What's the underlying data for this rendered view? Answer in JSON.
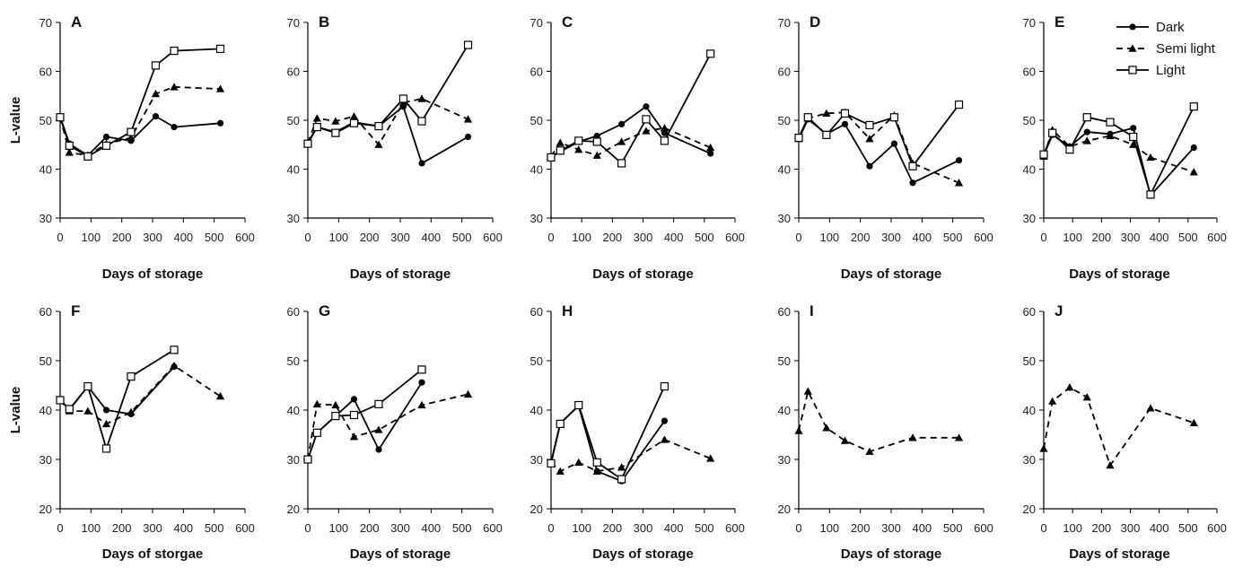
{
  "chart_data": [
    {
      "type": "line",
      "panel_label": "A",
      "ylabel": "L-value",
      "xlabel": "Days of storage",
      "xlim": [
        0,
        600
      ],
      "xticks": [
        0,
        100,
        200,
        300,
        400,
        500,
        600
      ],
      "ylim": [
        30,
        70
      ],
      "yticks": [
        30,
        40,
        50,
        60,
        70
      ],
      "series": [
        {
          "name": "Dark",
          "x": [
            0,
            30,
            90,
            150,
            230,
            310,
            370,
            520
          ],
          "y": [
            50.8,
            45.2,
            42.8,
            46.6,
            45.8,
            50.8,
            48.6,
            49.4
          ]
        },
        {
          "name": "Semi light",
          "x": [
            0,
            30,
            90,
            150,
            230,
            310,
            370,
            520
          ],
          "y": [
            50.6,
            43.4,
            42.8,
            45.2,
            46.4,
            55.4,
            56.8,
            56.4
          ]
        },
        {
          "name": "Light",
          "x": [
            0,
            30,
            90,
            150,
            230,
            310,
            370,
            520
          ],
          "y": [
            50.6,
            44.8,
            42.6,
            44.8,
            47.6,
            61.2,
            64.2,
            64.6
          ]
        }
      ]
    },
    {
      "type": "line",
      "panel_label": "B",
      "ylabel": "",
      "xlabel": "Days of storage",
      "xlim": [
        0,
        600
      ],
      "xticks": [
        0,
        100,
        200,
        300,
        400,
        500,
        600
      ],
      "ylim": [
        30,
        70
      ],
      "yticks": [
        30,
        40,
        50,
        60,
        70
      ],
      "series": [
        {
          "name": "Dark",
          "x": [
            0,
            30,
            90,
            150,
            230,
            310,
            370,
            520
          ],
          "y": [
            45.4,
            48.6,
            47.6,
            49.6,
            48.8,
            52.8,
            41.2,
            46.6
          ]
        },
        {
          "name": "Semi light",
          "x": [
            0,
            30,
            90,
            150,
            230,
            310,
            370,
            520
          ],
          "y": [
            45.4,
            50.4,
            49.8,
            50.8,
            45.0,
            53.6,
            54.4,
            50.2
          ]
        },
        {
          "name": "Light",
          "x": [
            0,
            30,
            90,
            150,
            230,
            310,
            370,
            520
          ],
          "y": [
            45.2,
            48.6,
            47.4,
            49.4,
            48.8,
            54.4,
            49.8,
            65.4
          ]
        }
      ]
    },
    {
      "type": "line",
      "panel_label": "C",
      "ylabel": "",
      "xlabel": "Days of storage",
      "xlim": [
        0,
        600
      ],
      "xticks": [
        0,
        100,
        200,
        300,
        400,
        500,
        600
      ],
      "ylim": [
        30,
        70
      ],
      "yticks": [
        30,
        40,
        50,
        60,
        70
      ],
      "series": [
        {
          "name": "Dark",
          "x": [
            0,
            30,
            90,
            150,
            230,
            310,
            370,
            520
          ],
          "y": [
            42.4,
            43.6,
            45.6,
            46.8,
            49.2,
            52.8,
            47.4,
            43.2
          ]
        },
        {
          "name": "Semi light",
          "x": [
            0,
            30,
            90,
            150,
            230,
            310,
            370,
            520
          ],
          "y": [
            42.6,
            45.4,
            44.0,
            42.8,
            45.6,
            47.8,
            48.4,
            44.4
          ]
        },
        {
          "name": "Light",
          "x": [
            0,
            30,
            90,
            150,
            230,
            310,
            370,
            520
          ],
          "y": [
            42.4,
            43.8,
            45.8,
            45.6,
            41.2,
            50.2,
            45.8,
            63.6
          ]
        }
      ]
    },
    {
      "type": "line",
      "panel_label": "D",
      "ylabel": "",
      "xlabel": "Days of storage",
      "xlim": [
        0,
        600
      ],
      "xticks": [
        0,
        100,
        200,
        300,
        400,
        500,
        600
      ],
      "ylim": [
        30,
        70
      ],
      "yticks": [
        30,
        40,
        50,
        60,
        70
      ],
      "series": [
        {
          "name": "Dark",
          "x": [
            0,
            30,
            90,
            150,
            230,
            310,
            370,
            520
          ],
          "y": [
            46.2,
            50.2,
            47.2,
            49.2,
            40.6,
            45.2,
            37.2,
            41.8
          ]
        },
        {
          "name": "Semi light",
          "x": [
            0,
            30,
            90,
            150,
            230,
            310,
            370,
            520
          ],
          "y": [
            46.2,
            50.4,
            51.4,
            51.6,
            46.2,
            51.0,
            41.2,
            37.2
          ]
        },
        {
          "name": "Light",
          "x": [
            0,
            30,
            90,
            150,
            230,
            310,
            370,
            520
          ],
          "y": [
            46.4,
            50.6,
            47.0,
            51.4,
            49.0,
            50.6,
            40.6,
            53.2
          ]
        }
      ]
    },
    {
      "type": "line",
      "panel_label": "E",
      "ylabel": "",
      "xlabel": "Days of storage",
      "xlim": [
        0,
        600
      ],
      "xticks": [
        0,
        100,
        200,
        300,
        400,
        500,
        600
      ],
      "ylim": [
        30,
        70
      ],
      "yticks": [
        30,
        40,
        50,
        60,
        70
      ],
      "legend": {
        "placement": "top-right",
        "entries": [
          "Dark",
          "Semi light",
          "Light"
        ]
      },
      "series": [
        {
          "name": "Dark",
          "x": [
            0,
            30,
            90,
            150,
            230,
            310,
            370,
            520
          ],
          "y": [
            42.8,
            47.0,
            44.6,
            47.6,
            47.2,
            48.4,
            34.6,
            44.4
          ]
        },
        {
          "name": "Semi light",
          "x": [
            0,
            30,
            90,
            150,
            230,
            310,
            370,
            520
          ],
          "y": [
            42.6,
            48.0,
            44.6,
            45.8,
            46.8,
            45.0,
            42.4,
            39.4
          ]
        },
        {
          "name": "Light",
          "x": [
            0,
            30,
            90,
            150,
            230,
            310,
            370,
            520
          ],
          "y": [
            43.0,
            47.4,
            44.0,
            50.6,
            49.6,
            46.6,
            34.8,
            52.8
          ]
        }
      ]
    },
    {
      "type": "line",
      "panel_label": "F",
      "ylabel": "L-value",
      "xlabel": "Days of storgae",
      "xlim": [
        0,
        600
      ],
      "xticks": [
        0,
        100,
        200,
        300,
        400,
        500,
        600
      ],
      "ylim": [
        20,
        60
      ],
      "yticks": [
        20,
        30,
        40,
        50,
        60
      ],
      "series": [
        {
          "name": "Dark",
          "x": [
            0,
            30,
            90,
            150,
            230,
            370
          ],
          "y": [
            42.2,
            40.0,
            44.8,
            40.0,
            39.2,
            48.8
          ]
        },
        {
          "name": "Semi light",
          "x": [
            0,
            30,
            90,
            150,
            230,
            370,
            520
          ],
          "y": [
            42.0,
            39.8,
            39.8,
            37.2,
            39.6,
            49.0,
            42.8
          ]
        },
        {
          "name": "Light",
          "x": [
            0,
            30,
            90,
            150,
            230,
            370
          ],
          "y": [
            42.0,
            40.2,
            44.8,
            32.2,
            46.8,
            52.2
          ]
        }
      ]
    },
    {
      "type": "line",
      "panel_label": "G",
      "ylabel": "",
      "xlabel": "Days of storage",
      "xlim": [
        0,
        600
      ],
      "xticks": [
        0,
        100,
        200,
        300,
        400,
        500,
        600
      ],
      "ylim": [
        20,
        60
      ],
      "yticks": [
        20,
        30,
        40,
        50,
        60
      ],
      "series": [
        {
          "name": "Dark",
          "x": [
            0,
            30,
            90,
            150,
            230,
            370
          ],
          "y": [
            30.0,
            35.4,
            38.8,
            42.2,
            32.0,
            45.6
          ]
        },
        {
          "name": "Semi light",
          "x": [
            0,
            30,
            90,
            150,
            230,
            370,
            520
          ],
          "y": [
            30.0,
            41.2,
            41.0,
            34.6,
            36.0,
            41.0,
            43.2
          ]
        },
        {
          "name": "Light",
          "x": [
            0,
            30,
            90,
            150,
            230,
            370
          ],
          "y": [
            30.0,
            35.4,
            38.8,
            39.0,
            41.2,
            48.2
          ]
        }
      ]
    },
    {
      "type": "line",
      "panel_label": "H",
      "ylabel": "",
      "xlabel": "Days of storage",
      "xlim": [
        0,
        600
      ],
      "xticks": [
        0,
        100,
        200,
        300,
        400,
        500,
        600
      ],
      "ylim": [
        20,
        60
      ],
      "yticks": [
        20,
        30,
        40,
        50,
        60
      ],
      "series": [
        {
          "name": "Dark",
          "x": [
            0,
            30,
            90,
            150,
            230,
            370
          ],
          "y": [
            29.4,
            37.4,
            40.8,
            27.6,
            25.6,
            37.8
          ]
        },
        {
          "name": "Semi light",
          "x": [
            0,
            30,
            90,
            150,
            230,
            370,
            520
          ],
          "y": [
            29.4,
            27.6,
            29.4,
            27.6,
            28.4,
            34.0,
            30.2
          ]
        },
        {
          "name": "Light",
          "x": [
            0,
            30,
            90,
            150,
            230,
            370
          ],
          "y": [
            29.2,
            37.2,
            41.0,
            29.4,
            26.0,
            44.8
          ]
        }
      ]
    },
    {
      "type": "line",
      "panel_label": "I",
      "ylabel": "",
      "xlabel": "Days of storage",
      "xlim": [
        0,
        600
      ],
      "xticks": [
        0,
        100,
        200,
        300,
        400,
        500,
        600
      ],
      "ylim": [
        20,
        60
      ],
      "yticks": [
        20,
        30,
        40,
        50,
        60
      ],
      "series": [
        {
          "name": "Semi light",
          "x": [
            0,
            30,
            90,
            150,
            230,
            370,
            520
          ],
          "y": [
            35.8,
            43.8,
            36.4,
            33.8,
            31.6,
            34.4,
            34.4
          ]
        }
      ]
    },
    {
      "type": "line",
      "panel_label": "J",
      "ylabel": "",
      "xlabel": "Days of storage",
      "xlim": [
        0,
        600
      ],
      "xticks": [
        0,
        100,
        200,
        300,
        400,
        500,
        600
      ],
      "ylim": [
        20,
        60
      ],
      "yticks": [
        20,
        30,
        40,
        50,
        60
      ],
      "series": [
        {
          "name": "Semi light",
          "x": [
            0,
            30,
            90,
            150,
            230,
            370,
            520
          ],
          "y": [
            32.2,
            41.8,
            44.6,
            42.6,
            28.8,
            40.4,
            37.4
          ]
        }
      ]
    }
  ],
  "styles": {
    "Dark": {
      "marker": "circle",
      "dash": "none",
      "color": "#000000"
    },
    "Semi light": {
      "marker": "triangle",
      "dash": "dashed",
      "color": "#000000"
    },
    "Light": {
      "marker": "open-square",
      "dash": "none",
      "color": "#000000"
    }
  }
}
